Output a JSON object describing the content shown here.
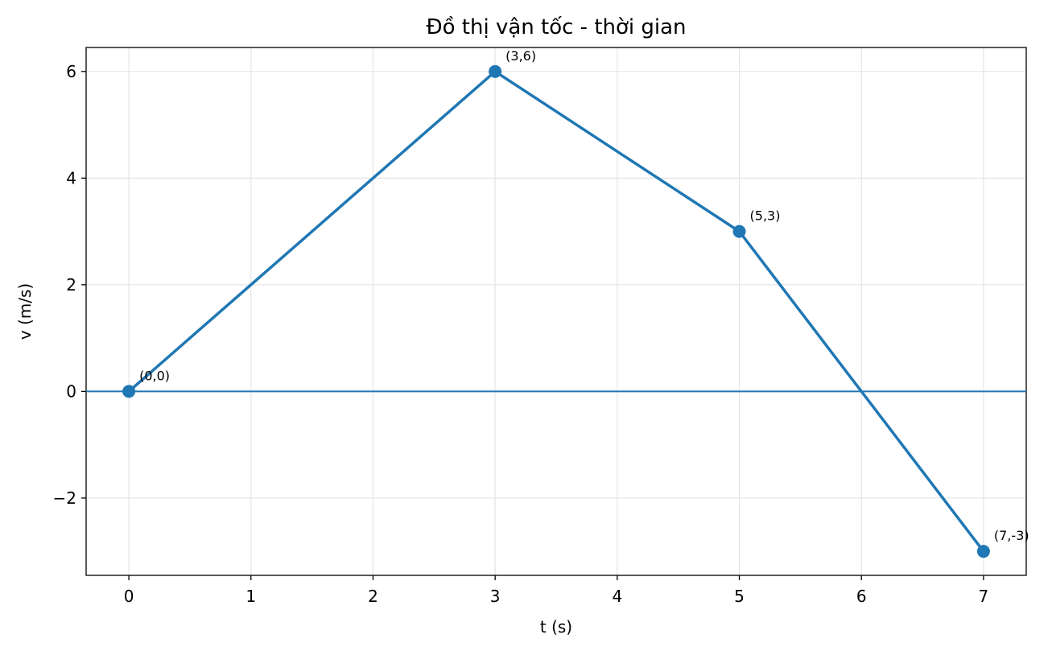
{
  "chart_data": {
    "type": "line",
    "title": "Đồ thị vận tốc - thời gian",
    "x_label": "t (s)",
    "y_label": "v (m/s)",
    "x": [
      0,
      3,
      5,
      7
    ],
    "series": [
      {
        "color": "#1f77b4",
        "values": [
          0,
          6,
          3,
          -3
        ],
        "value_labels": [
          "(0,0)",
          "(3,6)",
          "(5,3)",
          "(7,-3)"
        ]
      }
    ],
    "xlim": [
      -0.35,
      7.35
    ],
    "ylim": [
      -3.45,
      6.45
    ],
    "xticks": [
      0,
      1,
      2,
      3,
      4,
      5,
      6,
      7
    ],
    "yticks": [
      {
        "value": -2,
        "label": "−2"
      },
      0,
      2,
      4,
      6
    ],
    "hline": 0,
    "grid": true
  }
}
